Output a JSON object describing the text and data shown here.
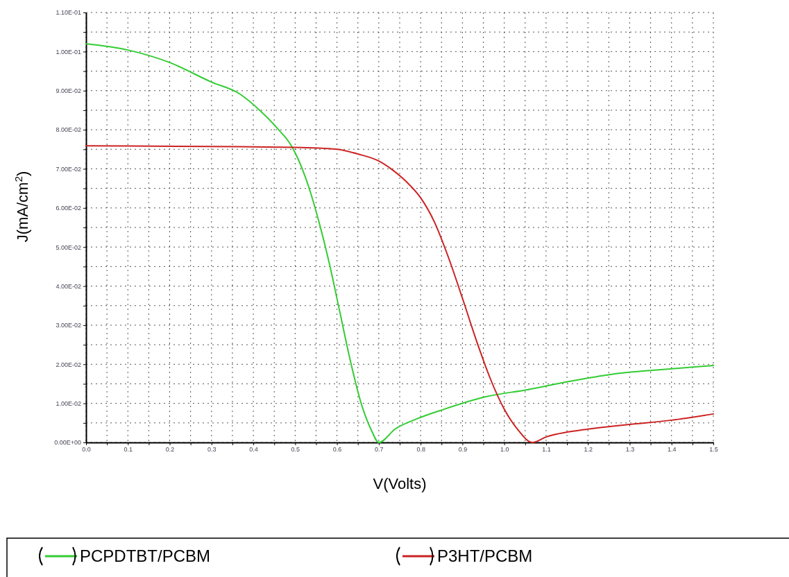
{
  "chart_data": {
    "type": "line",
    "xlabel": "V(Volts)",
    "ylabel": "J(mA/cm$^{2}$)",
    "xlim": [
      0,
      1.5
    ],
    "xticks": [
      {
        "value": 0,
        "label": "0.0"
      },
      {
        "value": 0.05,
        "label": null
      },
      {
        "value": 0.1,
        "label": "0.1"
      },
      {
        "value": 0.15,
        "label": null
      },
      {
        "value": 0.2,
        "label": "0.2"
      },
      {
        "value": 0.25,
        "label": null
      },
      {
        "value": 0.3,
        "label": "0.3"
      },
      {
        "value": 0.35,
        "label": null
      },
      {
        "value": 0.4,
        "label": "0.4"
      },
      {
        "value": 0.45,
        "label": null
      },
      {
        "value": 0.5,
        "label": "0.5"
      },
      {
        "value": 0.55,
        "label": null
      },
      {
        "value": 0.6,
        "label": "0.6"
      },
      {
        "value": 0.65,
        "label": null
      },
      {
        "value": 0.7,
        "label": "0.7"
      },
      {
        "value": 0.75,
        "label": null
      },
      {
        "value": 0.8,
        "label": "0.8"
      },
      {
        "value": 0.85,
        "label": null
      },
      {
        "value": 0.9,
        "label": "0.9"
      },
      {
        "value": 0.95,
        "label": null
      },
      {
        "value": 1.0,
        "label": "1.0"
      },
      {
        "value": 1.05,
        "label": null
      },
      {
        "value": 1.1,
        "label": "1.1"
      },
      {
        "value": 1.15,
        "label": null
      },
      {
        "value": 1.2,
        "label": "1.2"
      },
      {
        "value": 1.25,
        "label": null
      },
      {
        "value": 1.3,
        "label": "1.3"
      },
      {
        "value": 1.35,
        "label": null
      },
      {
        "value": 1.4,
        "label": "1.4"
      },
      {
        "value": 1.45,
        "label": null
      },
      {
        "value": 1.5,
        "label": "1.5"
      }
    ],
    "ylim": [
      0,
      0.11
    ],
    "yticks": [
      {
        "value": 0,
        "label": "0.00E+00"
      },
      {
        "value": 0.005,
        "label": null
      },
      {
        "value": 0.01,
        "label": "1.00E-02"
      },
      {
        "value": 0.015,
        "label": null
      },
      {
        "value": 0.02,
        "label": "2.00E-02"
      },
      {
        "value": 0.025,
        "label": null
      },
      {
        "value": 0.03,
        "label": "3.00E-02"
      },
      {
        "value": 0.035,
        "label": null
      },
      {
        "value": 0.04,
        "label": "4.00E-02"
      },
      {
        "value": 0.045,
        "label": null
      },
      {
        "value": 0.05,
        "label": "5.00E-02"
      },
      {
        "value": 0.055,
        "label": null
      },
      {
        "value": 0.06,
        "label": "6.00E-02"
      },
      {
        "value": 0.065,
        "label": null
      },
      {
        "value": 0.07,
        "label": "7.00E-02"
      },
      {
        "value": 0.075,
        "label": null
      },
      {
        "value": 0.08,
        "label": "8.00E-02"
      },
      {
        "value": 0.085,
        "label": null
      },
      {
        "value": 0.09,
        "label": "9.00E-02"
      },
      {
        "value": 0.095,
        "label": null
      },
      {
        "value": 0.1,
        "label": "1.00E-01"
      },
      {
        "value": 0.105,
        "label": null
      },
      {
        "value": 0.11,
        "label": "1.10E-01"
      }
    ],
    "grid": true,
    "legend": "bottom",
    "line_style": "solid",
    "series": [
      {
        "name": "PCPDTBT/PCBM",
        "color": "#33cc33",
        "x": [
          0,
          0.1,
          0.2,
          0.3,
          0.367,
          0.417,
          0.458,
          0.491,
          0.508,
          0.533,
          0.557,
          0.582,
          0.607,
          0.632,
          0.657,
          0.682,
          0.7,
          0.74,
          0.79,
          0.856,
          0.956,
          1.055,
          1.155,
          1.254,
          1.37,
          1.5
        ],
        "values": [
          0.102,
          0.1004,
          0.0972,
          0.0922,
          0.0892,
          0.0848,
          0.0803,
          0.0759,
          0.0723,
          0.0652,
          0.0564,
          0.0457,
          0.0333,
          0.0209,
          0.0103,
          0.0032,
          0,
          0.0035,
          0.006,
          0.0085,
          0.0117,
          0.0135,
          0.0156,
          0.0174,
          0.0186,
          0.0197
        ]
      },
      {
        "name": "P3HT/PCBM",
        "color": "#cc2222",
        "x": [
          0,
          0.3,
          0.5,
          0.6,
          0.65,
          0.7,
          0.733,
          0.766,
          0.8,
          0.833,
          0.866,
          0.9,
          0.933,
          0.966,
          1.0,
          1.033,
          1.067,
          1.1,
          1.2,
          1.3,
          1.4,
          1.5
        ],
        "values": [
          0.0759,
          0.0757,
          0.0755,
          0.075,
          0.0738,
          0.072,
          0.0697,
          0.0667,
          0.0626,
          0.0564,
          0.0475,
          0.0369,
          0.0262,
          0.0165,
          0.0085,
          0.0032,
          0,
          0.0014,
          0.0034,
          0.0046,
          0.0057,
          0.0073
        ]
      }
    ]
  }
}
